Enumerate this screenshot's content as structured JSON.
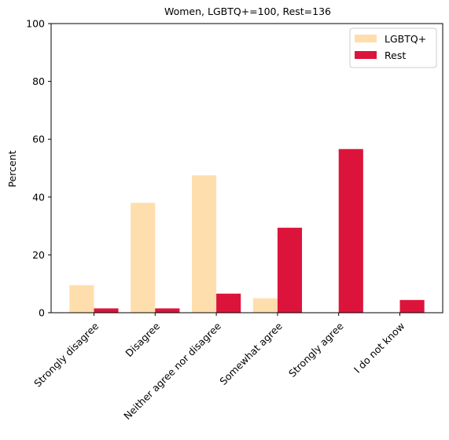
{
  "chart_data": {
    "type": "bar",
    "title": "Women, LGBTQ+=100, Rest=136",
    "xlabel": "",
    "ylabel": "Percent",
    "ylim": [
      0,
      100
    ],
    "yticks": [
      0,
      20,
      40,
      60,
      80,
      100
    ],
    "grid": false,
    "legend_position": "top-right",
    "categories": [
      "Strongly disagree",
      "Disagree",
      "Neither agree nor disagree",
      "Somewhat agree",
      "Strongly agree",
      "I do not know"
    ],
    "series": [
      {
        "name": "LGBTQ+",
        "color": "#ffdead",
        "values": [
          9.5,
          38.0,
          47.5,
          5.0,
          0,
          0
        ]
      },
      {
        "name": "Rest",
        "color": "#dc143c",
        "values": [
          1.5,
          1.5,
          6.6,
          29.4,
          56.6,
          4.4
        ]
      }
    ]
  }
}
